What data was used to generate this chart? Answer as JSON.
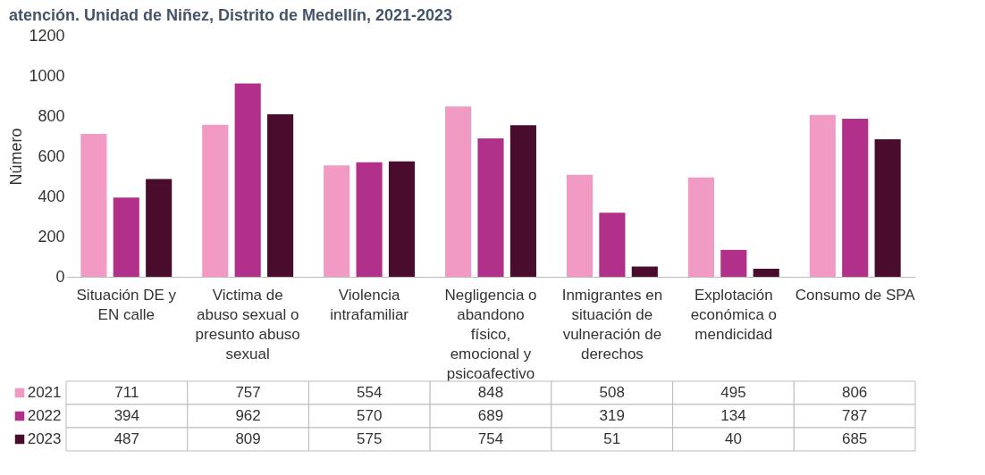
{
  "chart_data": {
    "type": "bar",
    "title": "atención. Unidad de Niñez, Distrito de Medellín, 2021-2023",
    "ylabel": "Número",
    "categories": [
      "Situación DE y EN calle",
      "Victima de abuso sexual o presunto abuso sexual",
      "Violencia intrafamiliar",
      "Negligencia o abandono físico, emocional y psicoafectivo",
      "Inmigrantes en situación de vulneración de derechos",
      "Explotación económica o mendicidad",
      "Consumo de SPA"
    ],
    "series": [
      {
        "name": "2021",
        "color": "#f19ac4",
        "values": [
          711,
          757,
          554,
          848,
          508,
          495,
          806
        ]
      },
      {
        "name": "2022",
        "color": "#b0308a",
        "values": [
          394,
          962,
          570,
          689,
          319,
          134,
          787
        ]
      },
      {
        "name": "2023",
        "color": "#4a0c2c",
        "values": [
          487,
          809,
          575,
          754,
          51,
          40,
          685
        ]
      }
    ],
    "ylim": [
      0,
      1200
    ],
    "yticks": [
      0,
      200,
      400,
      600,
      800,
      1000,
      1200
    ],
    "grid": false,
    "legend": "bottom",
    "data_labels": true
  }
}
